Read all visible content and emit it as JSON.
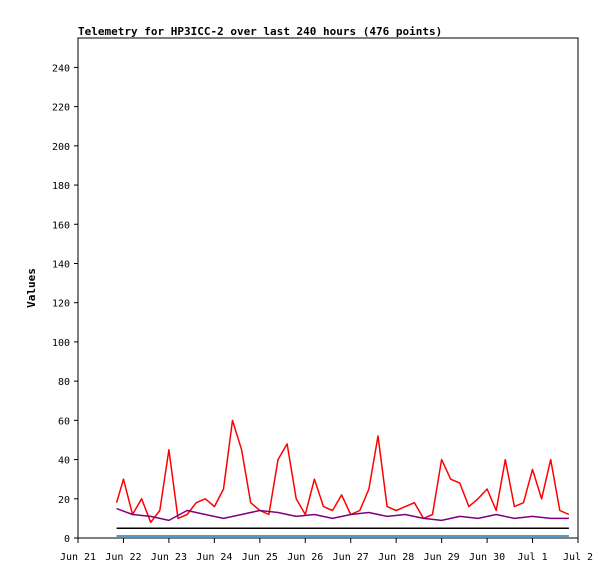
{
  "chart_data": {
    "type": "line",
    "title": "Telemetry for HP3ICC-2 over last 240 hours (476 points)",
    "xlabel": "",
    "ylabel": "Values",
    "xlim": [
      "Jun 21",
      "Jul 2"
    ],
    "ylim": [
      0,
      255
    ],
    "x_ticks": [
      "Jun 21",
      "Jun 22",
      "Jun 23",
      "Jun 24",
      "Jun 25",
      "Jun 26",
      "Jun 27",
      "Jun 28",
      "Jun 29",
      "Jun 30",
      "Jul 1",
      "Jul 2"
    ],
    "y_ticks": [
      0,
      20,
      40,
      60,
      80,
      100,
      120,
      140,
      160,
      180,
      200,
      220,
      240
    ],
    "grid": false,
    "legend": "none",
    "colors": {
      "red": "#ff0000",
      "purple": "#800080",
      "black": "#000000",
      "blue": "#1f77b4"
    },
    "series": [
      {
        "color": "#ff0000",
        "x_days": [
          0.85,
          1.0,
          1.2,
          1.4,
          1.6,
          1.8,
          2.0,
          2.2,
          2.4,
          2.6,
          2.8,
          3.0,
          3.2,
          3.4,
          3.6,
          3.8,
          4.0,
          4.2,
          4.4,
          4.6,
          4.8,
          5.0,
          5.2,
          5.4,
          5.6,
          5.8,
          6.0,
          6.2,
          6.4,
          6.6,
          6.8,
          7.0,
          7.2,
          7.4,
          7.6,
          7.8,
          8.0,
          8.2,
          8.4,
          8.6,
          8.8,
          9.0,
          9.2,
          9.4,
          9.6,
          9.8,
          10.0,
          10.2,
          10.4,
          10.6,
          10.8
        ],
        "values": [
          18,
          30,
          12,
          20,
          8,
          14,
          45,
          10,
          12,
          18,
          20,
          16,
          25,
          60,
          45,
          18,
          14,
          12,
          40,
          48,
          20,
          12,
          30,
          16,
          14,
          22,
          12,
          14,
          25,
          52,
          16,
          14,
          16,
          18,
          10,
          12,
          40,
          30,
          28,
          16,
          20,
          25,
          14,
          40,
          16,
          18,
          35,
          20,
          40,
          14,
          12
        ]
      },
      {
        "color": "#800080",
        "x_days": [
          0.85,
          1.2,
          1.6,
          2.0,
          2.4,
          2.8,
          3.2,
          3.6,
          4.0,
          4.4,
          4.8,
          5.2,
          5.6,
          6.0,
          6.4,
          6.8,
          7.2,
          7.6,
          8.0,
          8.4,
          8.8,
          9.2,
          9.6,
          10.0,
          10.4,
          10.8
        ],
        "values": [
          15,
          12,
          11,
          9,
          14,
          12,
          10,
          12,
          14,
          13,
          11,
          12,
          10,
          12,
          13,
          11,
          12,
          10,
          9,
          11,
          10,
          12,
          10,
          11,
          10,
          10
        ]
      },
      {
        "color": "#000000",
        "x_days": [
          0.85,
          10.8
        ],
        "values": [
          5,
          5
        ]
      },
      {
        "color": "#1f77b4",
        "x_days": [
          0.85,
          10.8
        ],
        "values": [
          1,
          1
        ]
      }
    ]
  }
}
